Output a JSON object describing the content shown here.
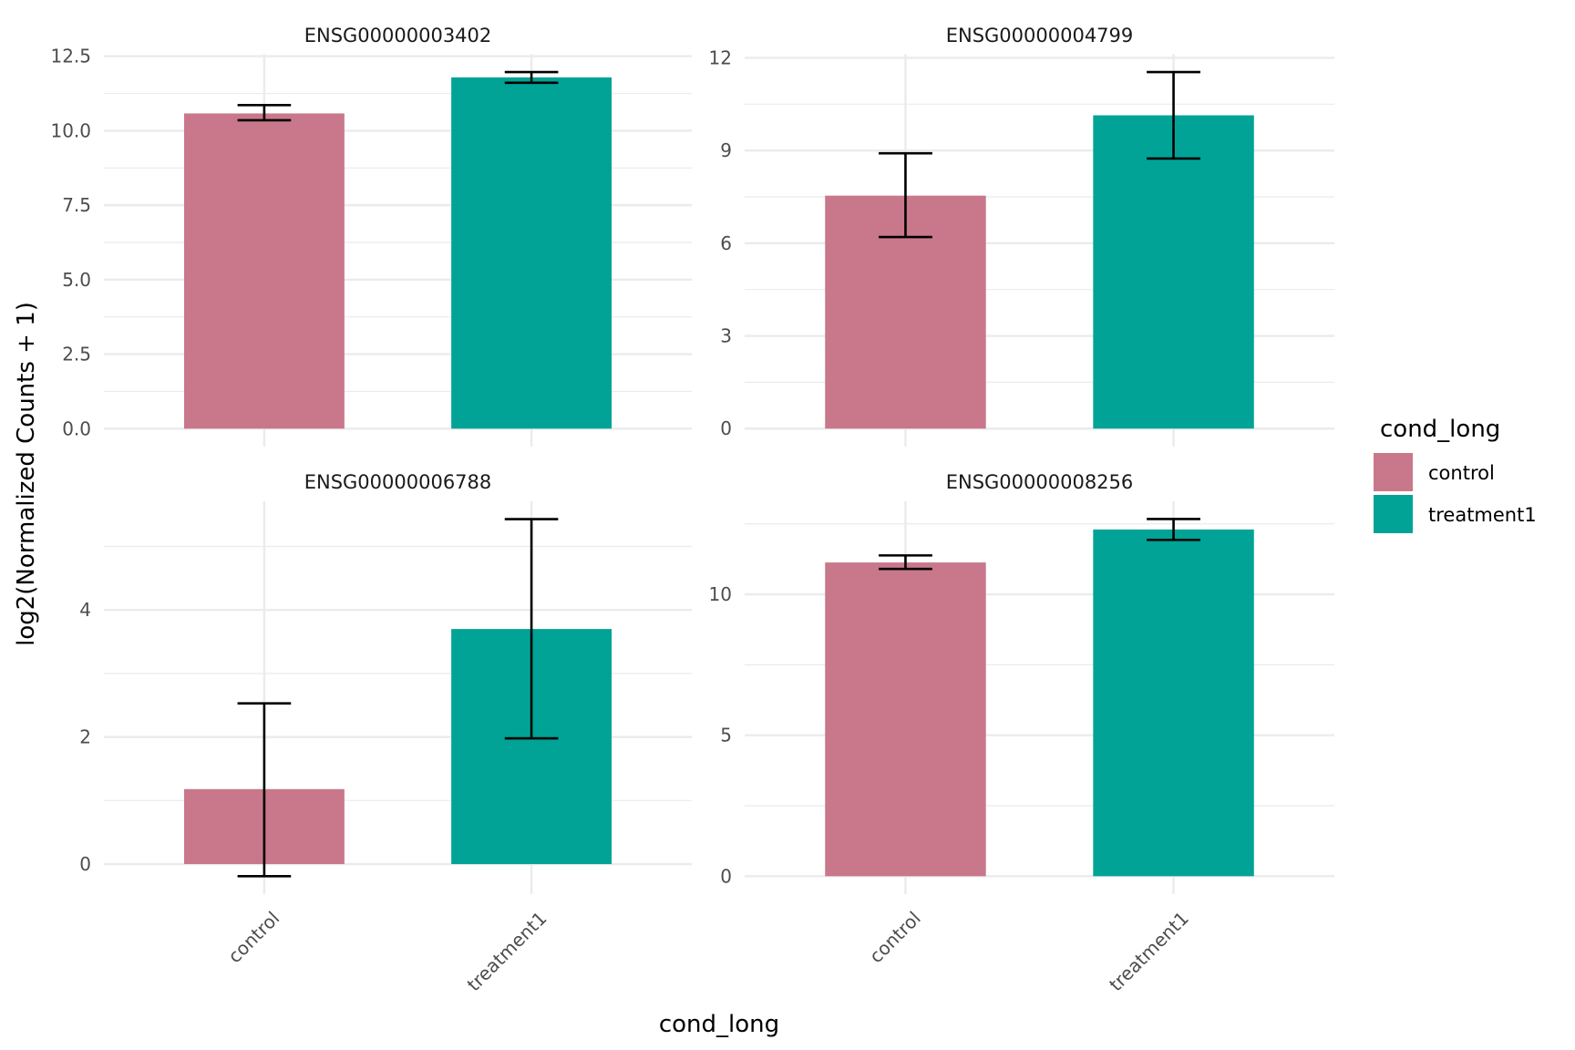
{
  "chart_data": {
    "type": "bar",
    "facet_by": "gene",
    "facet_layout": "2x2",
    "x_variable": "cond_long",
    "categories": [
      "control",
      "treatment1"
    ],
    "xlabel": "cond_long",
    "ylabel": "log2(Normalized Counts + 1)",
    "legend": {
      "title": "cond_long",
      "placement": "right",
      "entries": [
        {
          "label": "control",
          "color": "#C8788A"
        },
        {
          "label": "treatment1",
          "color": "#00A396"
        }
      ]
    },
    "grid": true,
    "panels": [
      {
        "title": "ENSG00000003402",
        "ylim": [
          -0.6,
          12.57
        ],
        "yticks": [
          0.0,
          2.5,
          5.0,
          7.5,
          10.0,
          12.5
        ],
        "ytick_labels": [
          "0.0",
          "2.5",
          "5.0",
          "7.5",
          "10.0",
          "12.5"
        ],
        "yminor": [
          1.25,
          3.75,
          6.25,
          8.75,
          11.25
        ],
        "values": [
          10.58,
          11.79
        ],
        "err_low": [
          10.35,
          11.61
        ],
        "err_high": [
          10.86,
          11.97
        ]
      },
      {
        "title": "ENSG00000004799",
        "ylim": [
          -0.58,
          12.12
        ],
        "yticks": [
          0,
          3,
          6,
          9,
          12
        ],
        "ytick_labels": [
          "0",
          "3",
          "6",
          "9",
          "12"
        ],
        "yminor": [
          1.5,
          4.5,
          7.5,
          10.5
        ],
        "values": [
          7.54,
          10.14
        ],
        "err_low": [
          6.2,
          8.74
        ],
        "err_high": [
          8.91,
          11.54
        ]
      },
      {
        "title": "ENSG00000006788",
        "ylim": [
          -0.47,
          5.71
        ],
        "yticks": [
          0,
          2,
          4
        ],
        "ytick_labels": [
          "0",
          "2",
          "4"
        ],
        "yminor": [
          1,
          3,
          5
        ],
        "values": [
          1.18,
          3.7
        ],
        "err_low": [
          -0.19,
          1.98
        ],
        "err_high": [
          2.53,
          5.43
        ]
      },
      {
        "title": "ENSG00000008256",
        "ylim": [
          -0.63,
          13.3
        ],
        "yticks": [
          0,
          5,
          10
        ],
        "ytick_labels": [
          "0",
          "5",
          "10"
        ],
        "yminor": [
          2.5,
          7.5,
          12.5
        ],
        "values": [
          11.13,
          12.3
        ],
        "err_low": [
          10.9,
          11.93
        ],
        "err_high": [
          11.38,
          12.67
        ]
      }
    ]
  }
}
